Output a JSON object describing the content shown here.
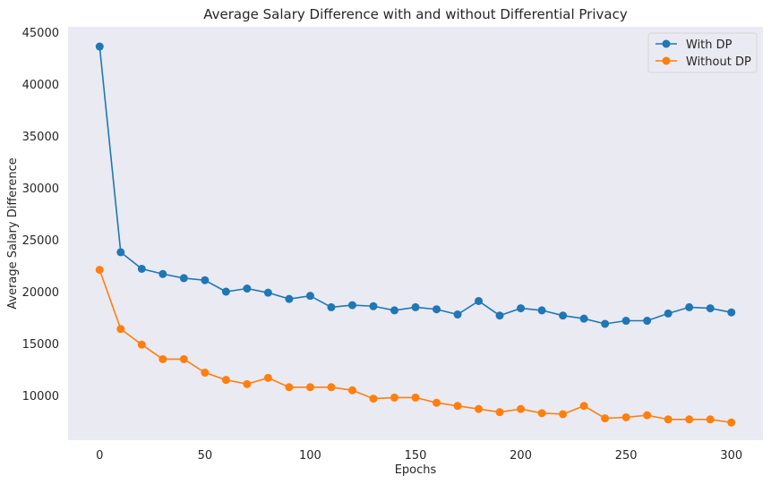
{
  "chart_data": {
    "type": "line",
    "title": "Average Salary Difference with and without Differential Privacy",
    "xlabel": "Epochs",
    "ylabel": "Average Salary Difference",
    "xlim": [
      -15,
      315
    ],
    "ylim": [
      5700,
      45500
    ],
    "xticks": [
      0,
      50,
      100,
      150,
      200,
      250,
      300
    ],
    "yticks": [
      10000,
      15000,
      20000,
      25000,
      30000,
      35000,
      40000,
      45000
    ],
    "grid": false,
    "background": "#eaeaf2",
    "legend_position": "top-right",
    "x": [
      0,
      10,
      20,
      30,
      40,
      50,
      60,
      70,
      80,
      90,
      100,
      110,
      120,
      130,
      140,
      150,
      160,
      170,
      180,
      190,
      200,
      210,
      220,
      230,
      240,
      250,
      260,
      270,
      280,
      290,
      300
    ],
    "series": [
      {
        "name": "With DP",
        "color": "#1f77b4",
        "values": [
          43600,
          23800,
          22200,
          21700,
          21300,
          21100,
          20000,
          20300,
          19900,
          19300,
          19600,
          18500,
          18700,
          18600,
          18200,
          18500,
          18300,
          17800,
          19100,
          17700,
          18400,
          18200,
          17700,
          17400,
          16900,
          17200,
          17200,
          17900,
          18500,
          18400,
          18000
        ]
      },
      {
        "name": "Without DP",
        "color": "#ff7f0e",
        "values": [
          22100,
          16400,
          14900,
          13500,
          13500,
          12200,
          11500,
          11100,
          11700,
          10800,
          10800,
          10800,
          10500,
          9700,
          9800,
          9800,
          9300,
          9000,
          8700,
          8400,
          8700,
          8300,
          8200,
          9000,
          7800,
          7900,
          8100,
          7700,
          7700,
          7700,
          7400
        ]
      }
    ]
  }
}
